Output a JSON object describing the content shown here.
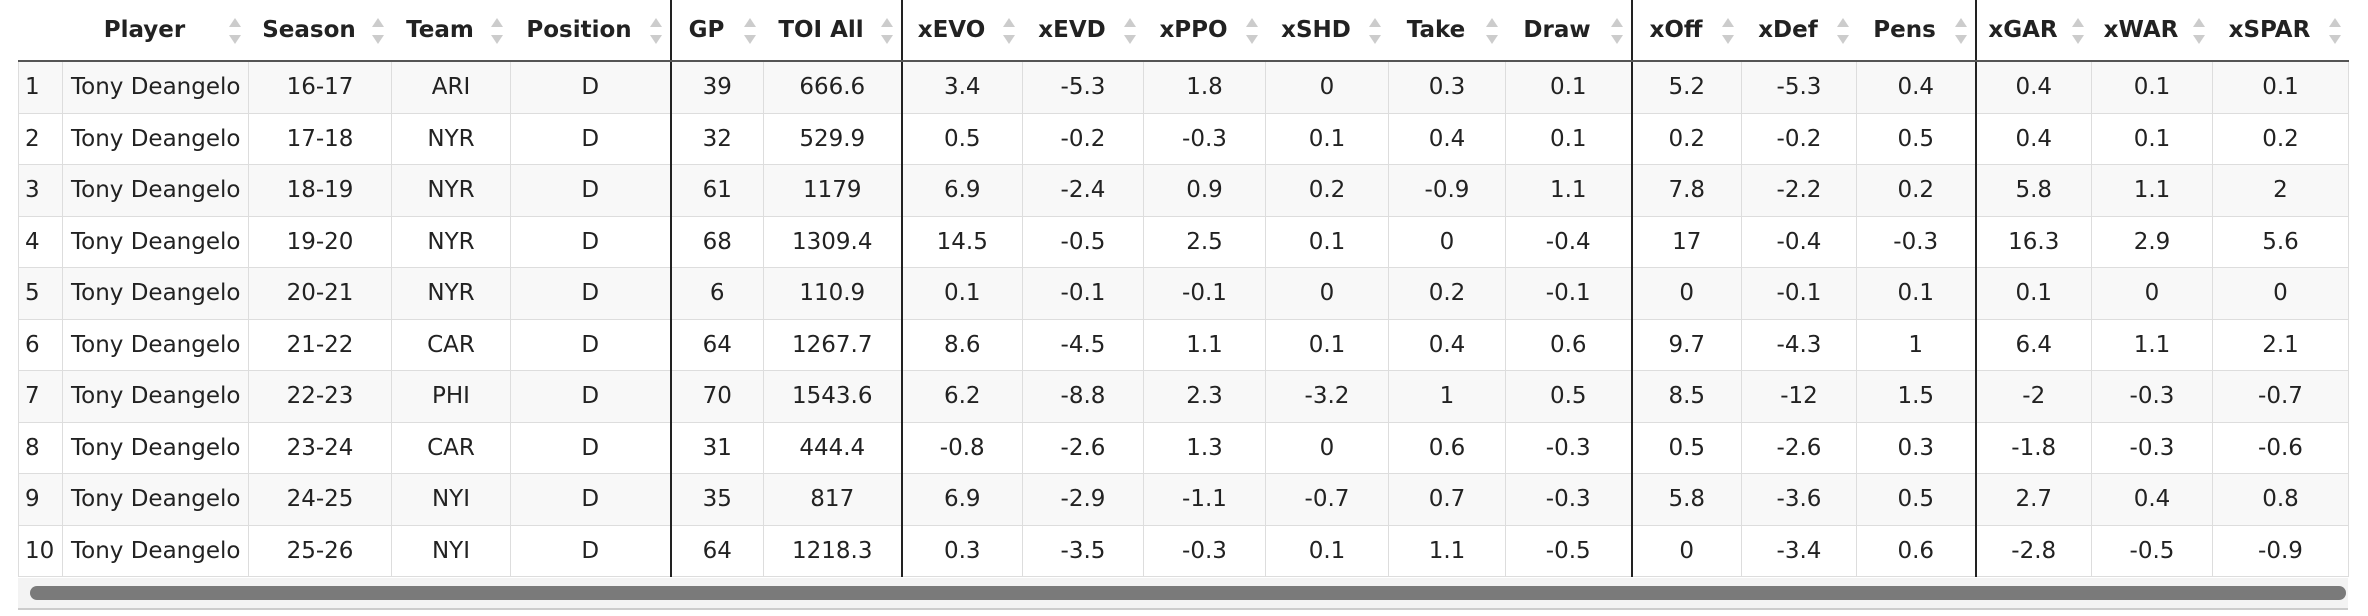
{
  "table": {
    "columns": [
      "Player",
      "Season",
      "Team",
      "Position",
      "GP",
      "TOI All",
      "xEVO",
      "xEVD",
      "xPPO",
      "xSHD",
      "Take",
      "Draw",
      "xOff",
      "xDef",
      "Pens",
      "xGAR",
      "xWAR",
      "xSPAR"
    ],
    "rows": [
      [
        1,
        "Tony Deangelo",
        "16-17",
        "ARI",
        "D",
        39,
        666.6,
        3.4,
        -5.3,
        1.8,
        0,
        0.3,
        0.1,
        5.2,
        -5.3,
        0.4,
        0.4,
        0.1,
        0.1
      ],
      [
        2,
        "Tony Deangelo",
        "17-18",
        "NYR",
        "D",
        32,
        529.9,
        0.5,
        -0.2,
        -0.3,
        0.1,
        0.4,
        0.1,
        0.2,
        -0.2,
        0.5,
        0.4,
        0.1,
        0.2
      ],
      [
        3,
        "Tony Deangelo",
        "18-19",
        "NYR",
        "D",
        61,
        1179,
        6.9,
        -2.4,
        0.9,
        0.2,
        -0.9,
        1.1,
        7.8,
        -2.2,
        0.2,
        5.8,
        1.1,
        2
      ],
      [
        4,
        "Tony Deangelo",
        "19-20",
        "NYR",
        "D",
        68,
        1309.4,
        14.5,
        -0.5,
        2.5,
        0.1,
        0,
        -0.4,
        17,
        -0.4,
        -0.3,
        16.3,
        2.9,
        5.6
      ],
      [
        5,
        "Tony Deangelo",
        "20-21",
        "NYR",
        "D",
        6,
        110.9,
        0.1,
        -0.1,
        -0.1,
        0,
        0.2,
        -0.1,
        0,
        -0.1,
        0.1,
        0.1,
        0,
        0
      ],
      [
        6,
        "Tony Deangelo",
        "21-22",
        "CAR",
        "D",
        64,
        1267.7,
        8.6,
        -4.5,
        1.1,
        0.1,
        0.4,
        0.6,
        9.7,
        -4.3,
        1,
        6.4,
        1.1,
        2.1
      ],
      [
        7,
        "Tony Deangelo",
        "22-23",
        "PHI",
        "D",
        70,
        1543.6,
        6.2,
        -8.8,
        2.3,
        -3.2,
        1,
        0.5,
        8.5,
        -12,
        1.5,
        -2,
        -0.3,
        -0.7
      ],
      [
        8,
        "Tony Deangelo",
        "23-24",
        "CAR",
        "D",
        31,
        444.4,
        -0.8,
        -2.6,
        1.3,
        0,
        0.6,
        -0.3,
        0.5,
        -2.6,
        0.3,
        -1.8,
        -0.3,
        -0.6
      ],
      [
        9,
        "Tony Deangelo",
        "24-25",
        "NYI",
        "D",
        35,
        817,
        6.9,
        -2.9,
        -1.1,
        -0.7,
        0.7,
        -0.3,
        5.8,
        -3.6,
        0.5,
        2.7,
        0.4,
        0.8
      ],
      [
        10,
        "Tony Deangelo",
        "25-26",
        "NYI",
        "D",
        64,
        1218.3,
        0.3,
        -3.5,
        -0.3,
        0.1,
        1.1,
        -0.5,
        0,
        -3.4,
        0.6,
        -2.8,
        -0.5,
        -0.9
      ]
    ]
  }
}
